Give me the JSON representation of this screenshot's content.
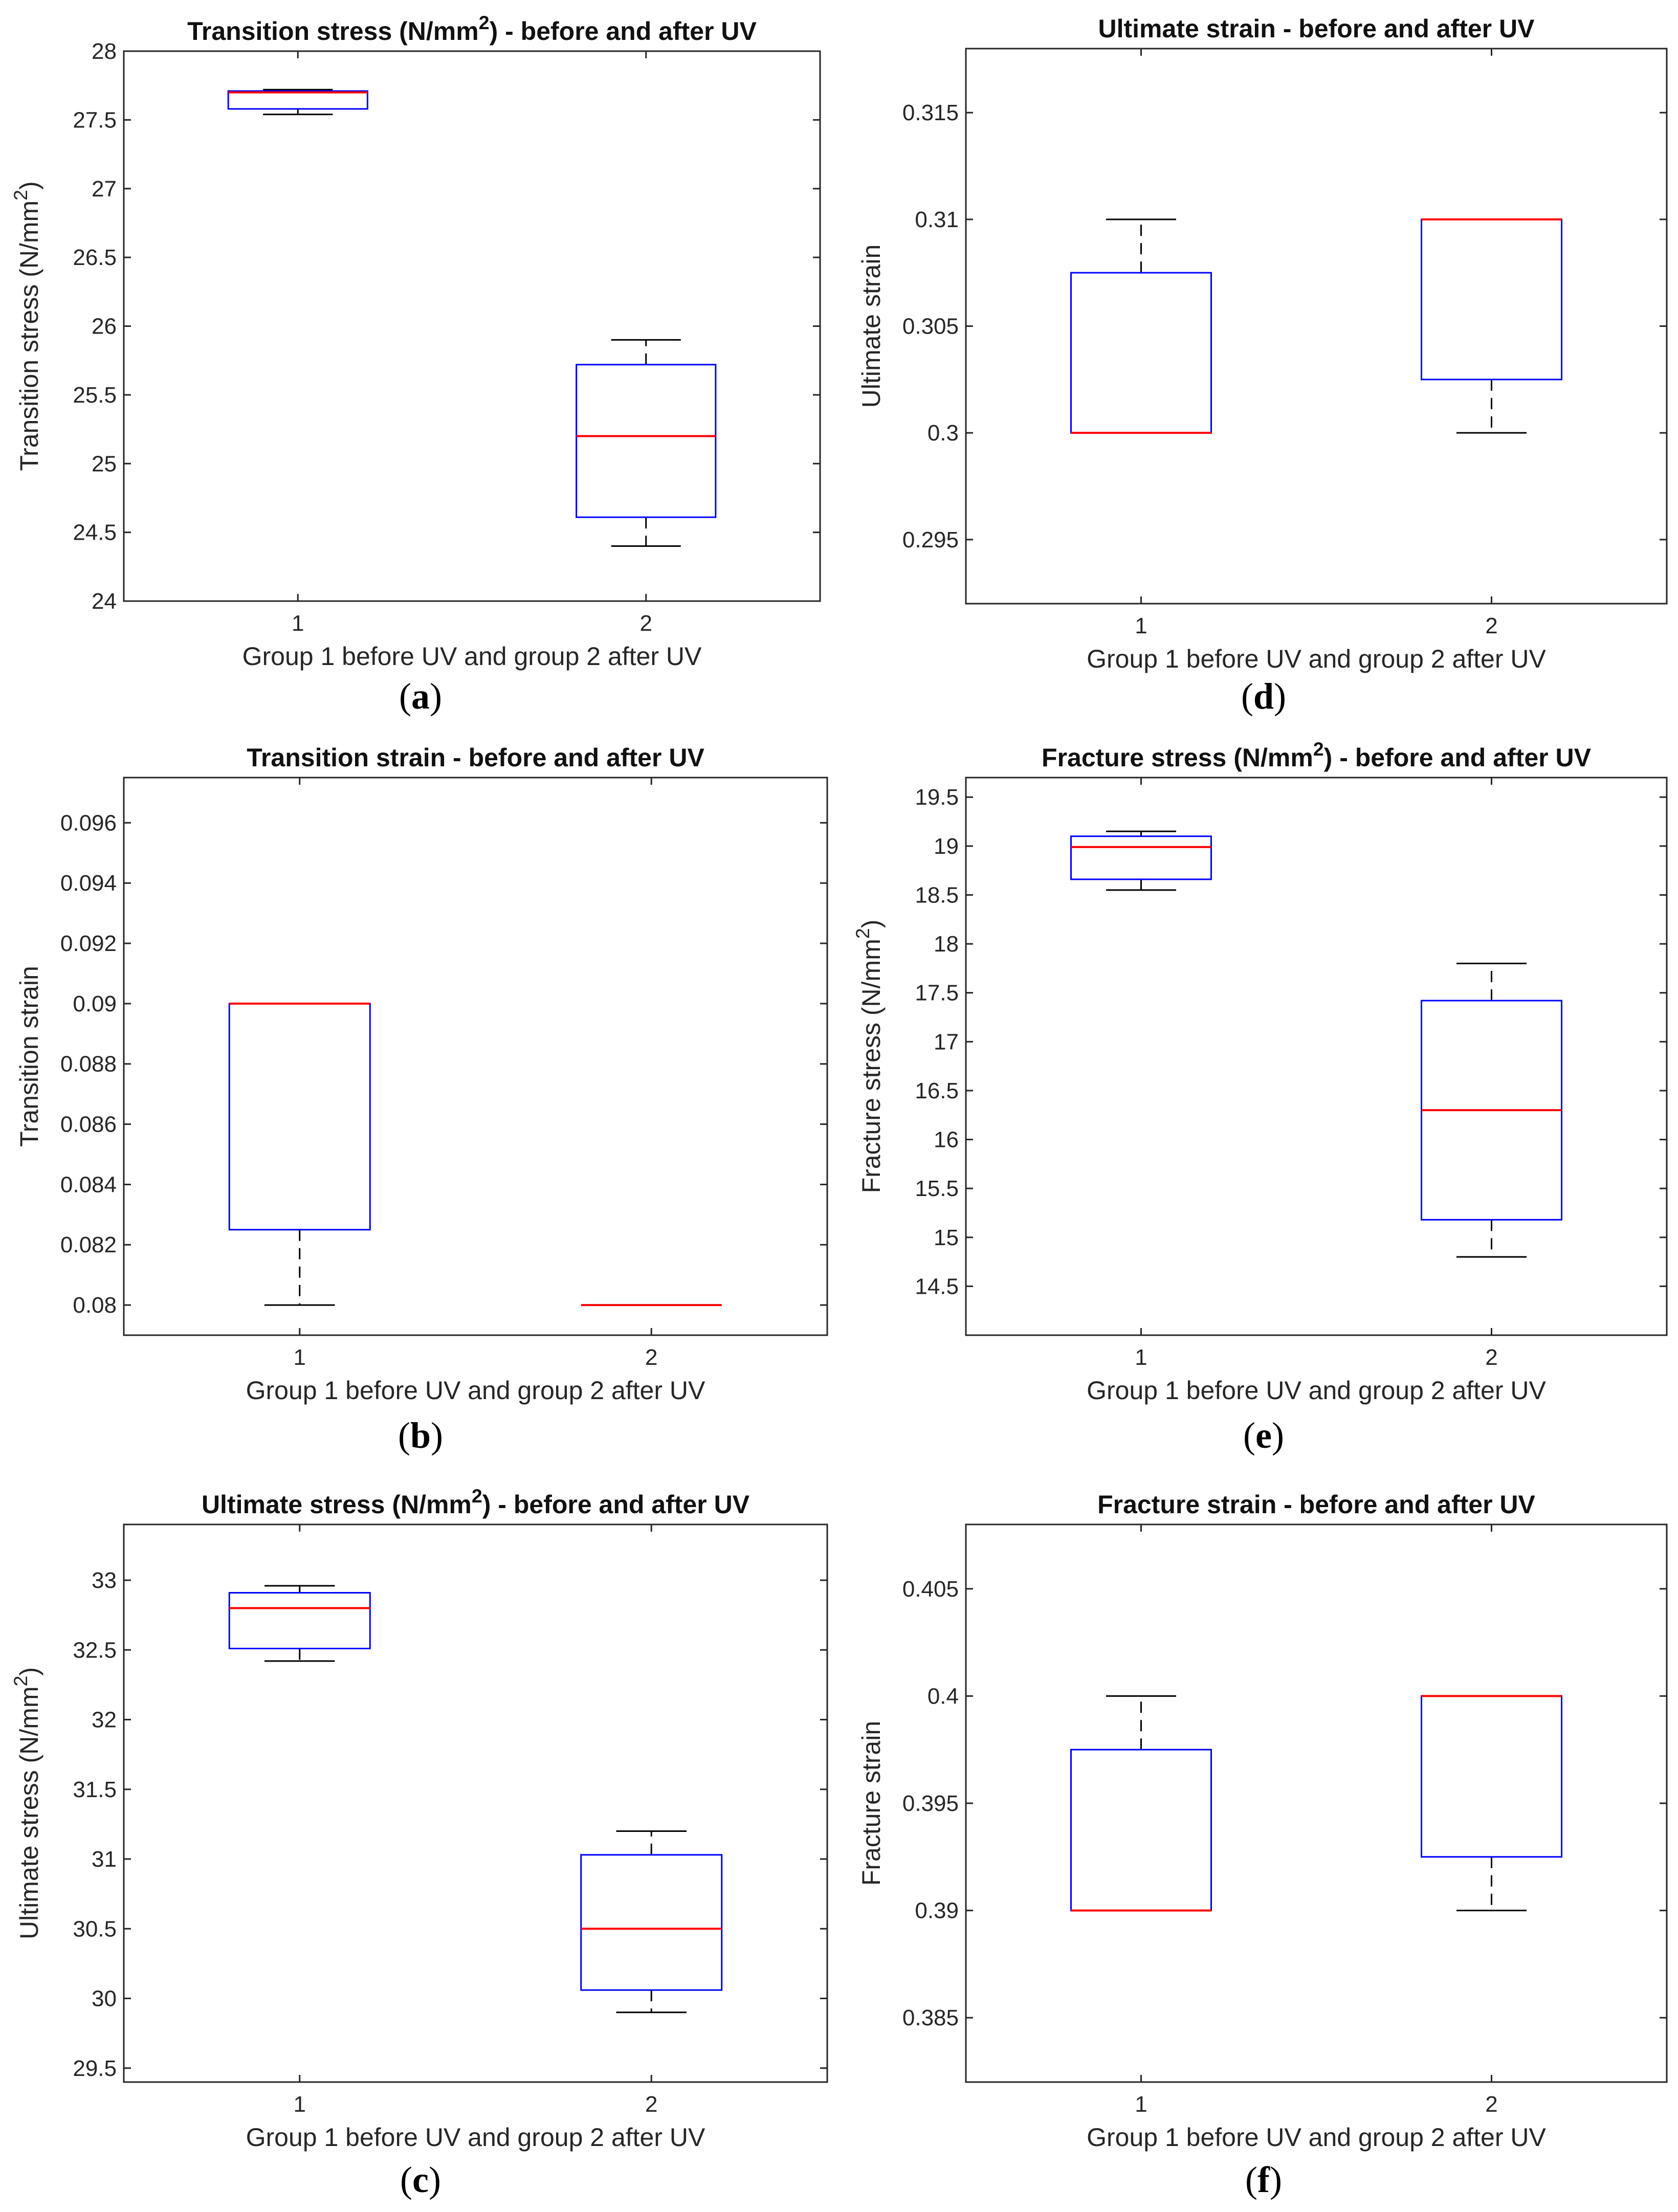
{
  "figure": {
    "panel_labels": [
      "(a)",
      "(b)",
      "(c)",
      "(d)",
      "(e)",
      "(f)"
    ],
    "colors": {
      "box": "#0000ff",
      "median": "#ff0000",
      "whisker": "#000000",
      "axis": "#262626"
    }
  },
  "chart_data": [
    {
      "type": "box",
      "panel": "a",
      "title": "Transition stress (N/mm2) - before and after UV",
      "xlabel": "Group 1 before UV and group 2 after UV",
      "ylabel": "Transition stress (N/mm2)",
      "ylim": [
        24,
        28
      ],
      "yticks": [
        24,
        24.5,
        25,
        25.5,
        26,
        26.5,
        27,
        27.5,
        28
      ],
      "ytick_labels": [
        "24",
        "24.5",
        "25",
        "25.5",
        "26",
        "26.5",
        "27",
        "27.5",
        "28"
      ],
      "categories": [
        "1",
        "2"
      ],
      "series": [
        {
          "name": "1",
          "min": 27.54,
          "q1": 27.58,
          "median": 27.7,
          "q3": 27.71,
          "max": 27.72
        },
        {
          "name": "2",
          "min": 24.4,
          "q1": 24.61,
          "median": 25.2,
          "q3": 25.72,
          "max": 25.9
        }
      ]
    },
    {
      "type": "box",
      "panel": "b",
      "title": "Transition strain - before and after UV",
      "xlabel": "Group 1 before UV and group 2 after UV",
      "ylabel": "Transition strain",
      "ylim": [
        0.079,
        0.0975
      ],
      "yticks": [
        0.08,
        0.082,
        0.084,
        0.086,
        0.088,
        0.09,
        0.092,
        0.094,
        0.096
      ],
      "ytick_labels": [
        "0.08",
        "0.082",
        "0.084",
        "0.086",
        "0.088",
        "0.09",
        "0.092",
        "0.094",
        "0.096"
      ],
      "categories": [
        "1",
        "2"
      ],
      "series": [
        {
          "name": "1",
          "min": 0.08,
          "q1": 0.0825,
          "median": 0.09,
          "q3": 0.09,
          "max": 0.09
        },
        {
          "name": "2",
          "min": 0.08,
          "q1": 0.08,
          "median": 0.08,
          "q3": 0.08,
          "max": 0.08
        }
      ]
    },
    {
      "type": "box",
      "panel": "c",
      "title": "Ultimate stress (N/mm2) - before and after UV",
      "xlabel": "Group 1 before UV and group 2 after UV",
      "ylabel": "Ultimate  stress (N/mm2)",
      "ylim": [
        29.4,
        33.4
      ],
      "yticks": [
        29.5,
        30,
        30.5,
        31,
        31.5,
        32,
        32.5,
        33
      ],
      "ytick_labels": [
        "29.5",
        "30",
        "30.5",
        "31",
        "31.5",
        "32",
        "32.5",
        "33"
      ],
      "categories": [
        "1",
        "2"
      ],
      "series": [
        {
          "name": "1",
          "min": 32.42,
          "q1": 32.51,
          "median": 32.8,
          "q3": 32.91,
          "max": 32.96
        },
        {
          "name": "2",
          "min": 29.9,
          "q1": 30.06,
          "median": 30.5,
          "q3": 31.03,
          "max": 31.2
        }
      ]
    },
    {
      "type": "box",
      "panel": "d",
      "title": "Ultimate strain - before and after UV",
      "xlabel": "Group 1 before UV and group 2 after UV",
      "ylabel": "Ultimate strain",
      "ylim": [
        0.292,
        0.318
      ],
      "yticks": [
        0.295,
        0.3,
        0.305,
        0.31,
        0.315
      ],
      "ytick_labels": [
        "0.295",
        "0.3",
        "0.305",
        "0.31",
        "0.315"
      ],
      "categories": [
        "1",
        "2"
      ],
      "series": [
        {
          "name": "1",
          "min": 0.3,
          "q1": 0.3,
          "median": 0.3,
          "q3": 0.3075,
          "max": 0.31
        },
        {
          "name": "2",
          "min": 0.3,
          "q1": 0.3025,
          "median": 0.31,
          "q3": 0.31,
          "max": 0.31
        }
      ]
    },
    {
      "type": "box",
      "panel": "e",
      "title": "Fracture stress (N/mm2) - before and after UV",
      "xlabel": "Group 1 before UV and group 2 after UV",
      "ylabel": "Fracture  stress (N/mm2)",
      "ylim": [
        14,
        19.7
      ],
      "yticks": [
        14.5,
        15,
        15.5,
        16,
        16.5,
        17,
        17.5,
        18,
        18.5,
        19,
        19.5
      ],
      "ytick_labels": [
        "14.5",
        "15",
        "15.5",
        "16",
        "16.5",
        "17",
        "17.5",
        "18",
        "18.5",
        "19",
        "19.5"
      ],
      "categories": [
        "1",
        "2"
      ],
      "series": [
        {
          "name": "1",
          "min": 18.55,
          "q1": 18.66,
          "median": 18.99,
          "q3": 19.1,
          "max": 19.15
        },
        {
          "name": "2",
          "min": 14.8,
          "q1": 15.18,
          "median": 16.3,
          "q3": 17.42,
          "max": 17.8
        }
      ]
    },
    {
      "type": "box",
      "panel": "f",
      "title": "Fracture strain - before and after UV",
      "xlabel": "Group 1 before UV and group 2 after UV",
      "ylabel": "Fracture strain",
      "ylim": [
        0.382,
        0.408
      ],
      "yticks": [
        0.385,
        0.39,
        0.395,
        0.4,
        0.405
      ],
      "ytick_labels": [
        "0.385",
        "0.39",
        "0.395",
        "0.4",
        "0.405"
      ],
      "categories": [
        "1",
        "2"
      ],
      "series": [
        {
          "name": "1",
          "min": 0.39,
          "q1": 0.39,
          "median": 0.39,
          "q3": 0.3975,
          "max": 0.4
        },
        {
          "name": "2",
          "min": 0.39,
          "q1": 0.3925,
          "median": 0.4,
          "q3": 0.4,
          "max": 0.4
        }
      ]
    }
  ]
}
